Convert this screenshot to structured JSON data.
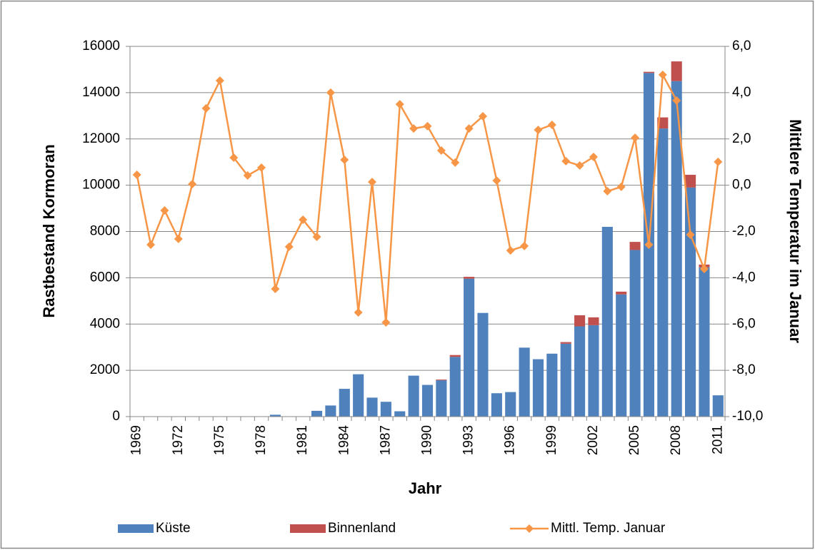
{
  "chart_data": {
    "type": "bar",
    "stacked": true,
    "x_label": "Jahr",
    "y_label": "Rastbestand Kormoran",
    "y2_label": "Mittlere Temperatur im Januar",
    "categories": [
      "1969",
      null,
      null,
      "1972",
      null,
      null,
      "1975",
      null,
      null,
      "1978",
      null,
      null,
      "1981",
      null,
      null,
      "1984",
      null,
      null,
      "1987",
      null,
      null,
      "1990",
      null,
      null,
      "1993",
      null,
      null,
      "1996",
      null,
      null,
      "1999",
      null,
      null,
      "2002",
      null,
      null,
      "2005",
      null,
      null,
      "2008",
      null,
      null,
      "2011"
    ],
    "series": [
      {
        "name": "Küste",
        "type": "bar",
        "color": "#4f81bd",
        "values": [
          0,
          0,
          0,
          0,
          0,
          0,
          0,
          0,
          0,
          0,
          80,
          0,
          0,
          250,
          480,
          1200,
          1830,
          820,
          640,
          230,
          1770,
          1370,
          1570,
          2580,
          5960,
          4480,
          1010,
          1060,
          2980,
          2480,
          2720,
          3150,
          3900,
          3950,
          8200,
          5280,
          7200,
          14850,
          12450,
          14500,
          9900,
          6450,
          920
        ]
      },
      {
        "name": "Binnenland",
        "type": "bar",
        "color": "#c0504d",
        "values": [
          0,
          0,
          0,
          0,
          0,
          0,
          0,
          0,
          0,
          0,
          0,
          0,
          0,
          0,
          0,
          0,
          0,
          0,
          0,
          0,
          0,
          0,
          30,
          80,
          80,
          0,
          0,
          0,
          0,
          0,
          0,
          70,
          480,
          340,
          0,
          120,
          350,
          50,
          480,
          850,
          550,
          120,
          0
        ]
      },
      {
        "name": "Mittl. Temp. Januar",
        "type": "line",
        "axis": "y2",
        "color": "#f79646",
        "marker": "diamond",
        "values": [
          0.45,
          -2.57,
          -1.09,
          -2.32,
          0.05,
          3.32,
          4.52,
          1.19,
          0.42,
          0.76,
          -4.48,
          -2.66,
          -1.49,
          -2.23,
          4.0,
          1.1,
          -5.5,
          0.14,
          -5.93,
          3.5,
          2.45,
          2.55,
          1.5,
          0.98,
          2.45,
          2.98,
          0.2,
          -2.82,
          -2.63,
          2.39,
          2.61,
          1.04,
          0.85,
          1.22,
          -0.26,
          -0.07,
          2.05,
          -2.57,
          4.77,
          3.66,
          -2.14,
          -3.62,
          1.01
        ]
      }
    ],
    "ylim": [
      0,
      16000
    ],
    "yticks": [
      0,
      2000,
      4000,
      6000,
      8000,
      10000,
      12000,
      14000,
      16000
    ],
    "y2lim": [
      -10,
      6
    ],
    "y2ticks": [
      {
        "value": -10,
        "label": "-10,0"
      },
      {
        "value": -8,
        "label": "-8,0"
      },
      {
        "value": -6,
        "label": "-6,0"
      },
      {
        "value": -4,
        "label": "-4,0"
      },
      {
        "value": -2,
        "label": "-2,0"
      },
      {
        "value": 0,
        "label": "0,0"
      },
      {
        "value": 2,
        "label": "2,0"
      },
      {
        "value": 4,
        "label": "4,0"
      },
      {
        "value": 6,
        "label": "6,0"
      }
    ],
    "grid": true,
    "legend": "bottom"
  }
}
